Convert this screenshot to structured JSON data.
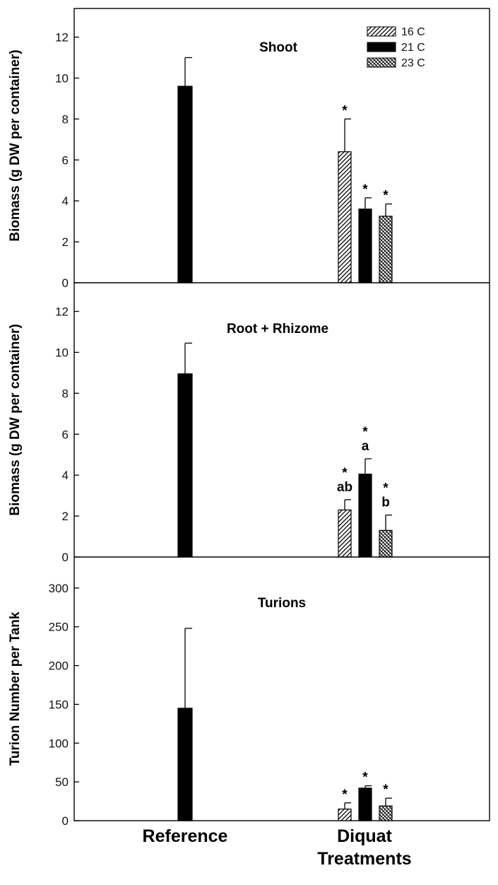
{
  "chart_data": {
    "type": "bar",
    "categories": [
      "Reference",
      "Diquat\nTreatments"
    ],
    "legend": {
      "placement": "top-right",
      "entries": [
        {
          "name": "16 C",
          "pattern": "diagonal-hatch"
        },
        {
          "name": "21 C",
          "pattern": "solid-black"
        },
        {
          "name": "23 C",
          "pattern": "cross-hatch"
        }
      ]
    },
    "panels": [
      {
        "title": "Shoot",
        "ylabel": "Biomass (g  DW per container)",
        "ylim": [
          0,
          13.4
        ],
        "yticks": [
          0,
          2,
          4,
          6,
          8,
          10,
          12
        ],
        "reference": {
          "value": 9.6,
          "error": 1.4
        },
        "treatments": [
          {
            "series": "16 C",
            "value": 6.4,
            "error": 1.6,
            "label": "*"
          },
          {
            "series": "21 C",
            "value": 3.6,
            "error": 0.55,
            "label": "*"
          },
          {
            "series": "23 C",
            "value": 3.25,
            "error": 0.6,
            "label": "*"
          }
        ]
      },
      {
        "title": "Root + Rhizome",
        "ylabel": "Biomass (g  DW per container)",
        "ylim": [
          0,
          13.4
        ],
        "yticks": [
          0,
          2,
          4,
          6,
          8,
          10,
          12
        ],
        "reference": {
          "value": 8.95,
          "error": 1.5
        },
        "treatments": [
          {
            "series": "16 C",
            "value": 2.3,
            "error": 0.5,
            "label": "*",
            "label2": "ab"
          },
          {
            "series": "21 C",
            "value": 4.05,
            "error": 0.75,
            "label": "*",
            "label2": "a"
          },
          {
            "series": "23 C",
            "value": 1.3,
            "error": 0.75,
            "label": "*",
            "label2": "b"
          }
        ]
      },
      {
        "title": "Turions",
        "ylabel": "Turion Number per Tank",
        "ylim": [
          0,
          340
        ],
        "yticks": [
          0,
          50,
          100,
          150,
          200,
          250,
          300
        ],
        "reference": {
          "value": 145,
          "error": 103
        },
        "treatments": [
          {
            "series": "16 C",
            "value": 15,
            "error": 8,
            "label": "*"
          },
          {
            "series": "21 C",
            "value": 42,
            "error": 3,
            "label": "*"
          },
          {
            "series": "23 C",
            "value": 19,
            "error": 10,
            "label": "*"
          }
        ]
      }
    ]
  }
}
